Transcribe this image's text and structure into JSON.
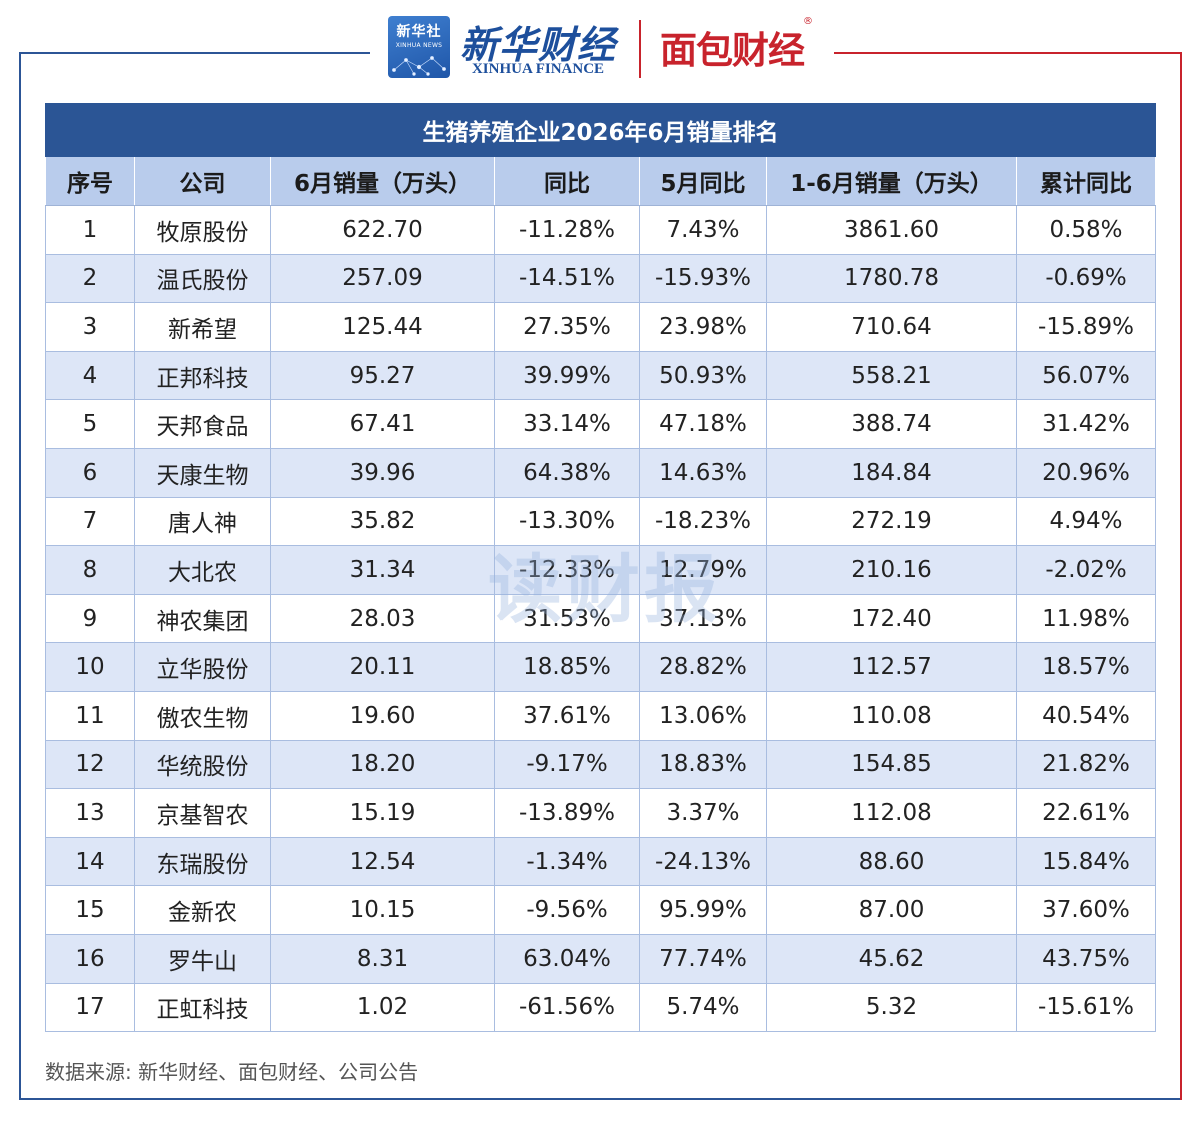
{
  "header": {
    "xinhua_logo_text": "新华社",
    "xinhua_logo_sub": "XINHUA NEWS",
    "xinhua_finance_cn": "新华财经",
    "xinhua_finance_en": "XINHUA FINANCE",
    "mianbao_logo": "面包财经",
    "mianbao_reg": "®"
  },
  "table": {
    "title": "生猪养殖企业2026年6月销量排名",
    "columns": [
      "序号",
      "公司",
      "6月销量（万头）",
      "同比",
      "5月同比",
      "1-6月销量（万头）",
      "累计同比"
    ],
    "rows": [
      [
        "1",
        "牧原股份",
        "622.70",
        "-11.28%",
        "7.43%",
        "3861.60",
        "0.58%"
      ],
      [
        "2",
        "温氏股份",
        "257.09",
        "-14.51%",
        "-15.93%",
        "1780.78",
        "-0.69%"
      ],
      [
        "3",
        "新希望",
        "125.44",
        "27.35%",
        "23.98%",
        "710.64",
        "-15.89%"
      ],
      [
        "4",
        "正邦科技",
        "95.27",
        "39.99%",
        "50.93%",
        "558.21",
        "56.07%"
      ],
      [
        "5",
        "天邦食品",
        "67.41",
        "33.14%",
        "47.18%",
        "388.74",
        "31.42%"
      ],
      [
        "6",
        "天康生物",
        "39.96",
        "64.38%",
        "14.63%",
        "184.84",
        "20.96%"
      ],
      [
        "7",
        "唐人神",
        "35.82",
        "-13.30%",
        "-18.23%",
        "272.19",
        "4.94%"
      ],
      [
        "8",
        "大北农",
        "31.34",
        "-12.33%",
        "12.79%",
        "210.16",
        "-2.02%"
      ],
      [
        "9",
        "神农集团",
        "28.03",
        "31.53%",
        "37.13%",
        "172.40",
        "11.98%"
      ],
      [
        "10",
        "立华股份",
        "20.11",
        "18.85%",
        "28.82%",
        "112.57",
        "18.57%"
      ],
      [
        "11",
        "傲农生物",
        "19.60",
        "37.61%",
        "13.06%",
        "110.08",
        "40.54%"
      ],
      [
        "12",
        "华统股份",
        "18.20",
        "-9.17%",
        "18.83%",
        "154.85",
        "21.82%"
      ],
      [
        "13",
        "京基智农",
        "15.19",
        "-13.89%",
        "3.37%",
        "112.08",
        "22.61%"
      ],
      [
        "14",
        "东瑞股份",
        "12.54",
        "-1.34%",
        "-24.13%",
        "88.60",
        "15.84%"
      ],
      [
        "15",
        "金新农",
        "10.15",
        "-9.56%",
        "95.99%",
        "87.00",
        "37.60%"
      ],
      [
        "16",
        "罗牛山",
        "8.31",
        "63.04%",
        "77.74%",
        "45.62",
        "43.75%"
      ],
      [
        "17",
        "正虹科技",
        "1.02",
        "-61.56%",
        "5.74%",
        "5.32",
        "-15.61%"
      ]
    ]
  },
  "watermark": "读财报",
  "source": "数据来源: 新华财经、面包财经、公司公告",
  "colors": {
    "title_bg": "#2b5595",
    "header_bg": "#b9ccec",
    "stripe_bg": "#dde6f7",
    "frame_blue": "#2c5596",
    "frame_red": "#c8232c"
  }
}
